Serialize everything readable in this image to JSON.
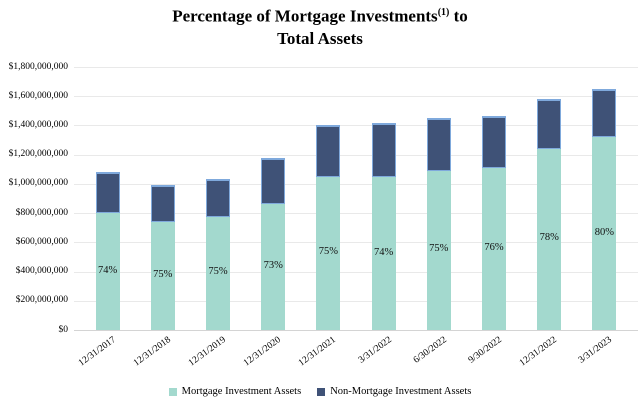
{
  "title": {
    "line1_main": "Percentage of Mortgage Investments",
    "superscript": "(1)",
    "line1_suffix": " to",
    "line2": "Total Assets"
  },
  "colors": {
    "mortgage_fill": "#a3d9ce",
    "nonmortgage_fill": "#3f5277",
    "nonmortgage_border": "#7fa9dc",
    "gridline": "#e9e9e9",
    "axis_line": "#d4d4d4",
    "text": "#000000"
  },
  "chart_data": {
    "type": "bar",
    "stacked": true,
    "title": "Percentage of Mortgage Investments(1) to Total Assets",
    "categories": [
      "12/31/2017",
      "12/31/2018",
      "12/31/2019",
      "12/31/2020",
      "12/31/2021",
      "3/31/2022",
      "6/30/2022",
      "9/30/2022",
      "12/31/2022",
      "3/31/2023"
    ],
    "series": [
      {
        "name": "Mortgage Investment Assets",
        "color": "#a3d9ce",
        "values": [
          800000000,
          740000000,
          775000000,
          865000000,
          1050000000,
          1045000000,
          1090000000,
          1110000000,
          1240000000,
          1320000000
        ]
      },
      {
        "name": "Non-Mortgage Investment Assets",
        "color": "#3f5277",
        "values": [
          280000000,
          250000000,
          260000000,
          315000000,
          350000000,
          370000000,
          360000000,
          355000000,
          340000000,
          330000000
        ]
      }
    ],
    "bar_labels": [
      "74%",
      "75%",
      "75%",
      "73%",
      "75%",
      "74%",
      "75%",
      "76%",
      "78%",
      "80%"
    ],
    "ylim": [
      0,
      1800000000
    ],
    "ytick_step": 200000000,
    "ytick_labels": [
      "$0",
      "$200,000,000",
      "$400,000,000",
      "$600,000,000",
      "$800,000,000",
      "$1,000,000,000",
      "$1,200,000,000",
      "$1,400,000,000",
      "$1,600,000,000",
      "$1,800,000,000"
    ],
    "grid": true,
    "legend_position": "bottom"
  }
}
